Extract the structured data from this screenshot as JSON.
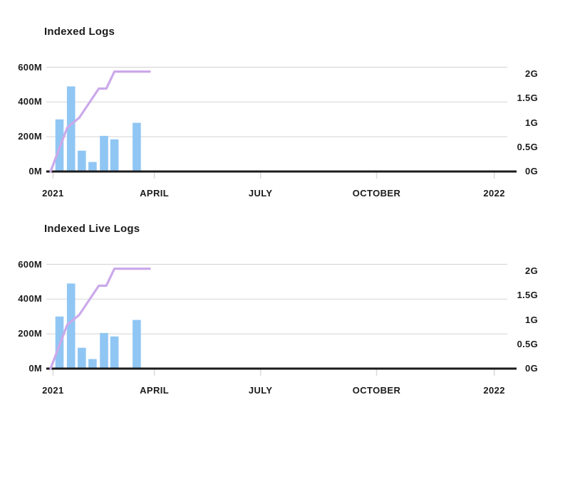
{
  "colors": {
    "background": "#ffffff",
    "grid": "#D9D9D9",
    "axis_line": "#1B1B1D",
    "text": "#1B1B1D",
    "bar": "#90C6F3",
    "line": "#CBA9EA"
  },
  "chart_data": [
    {
      "type": "bar",
      "title": "Indexed Logs",
      "legend": "none",
      "grid": "horizontal",
      "x_axis": {
        "tick_labels": [
          "2021",
          "APRIL",
          "JULY",
          "OCTOBER",
          "2022"
        ],
        "tick_months": [
          0,
          3,
          6,
          9,
          12
        ]
      },
      "left_axis": {
        "tick_labels": [
          "0M",
          "200M",
          "400M",
          "600M"
        ],
        "tick_values_M": [
          0,
          200,
          400,
          600
        ],
        "range_M": [
          0,
          600
        ]
      },
      "right_axis": {
        "tick_labels": [
          "0G",
          "0.5G",
          "1G",
          "1.5G",
          "2G"
        ],
        "tick_values_G": [
          0,
          0.5,
          1,
          1.5,
          2
        ]
      },
      "bars": {
        "unit": "M",
        "x_months": [
          0.24,
          0.55,
          0.84,
          1.13,
          1.44,
          1.72,
          2.32
        ],
        "values_M": [
          300,
          490,
          120,
          55,
          205,
          185,
          280
        ]
      },
      "line": {
        "unit": "G",
        "points_month_G": [
          [
            0,
            0
          ],
          [
            0.45,
            0.9
          ],
          [
            0.77,
            1.1
          ],
          [
            1.3,
            1.7
          ],
          [
            1.5,
            1.7
          ],
          [
            1.72,
            2.05
          ],
          [
            2.67,
            2.05
          ]
        ]
      }
    },
    {
      "type": "bar",
      "title": "Indexed Live Logs",
      "legend": "none",
      "grid": "horizontal",
      "x_axis": {
        "tick_labels": [
          "2021",
          "APRIL",
          "JULY",
          "OCTOBER",
          "2022"
        ],
        "tick_months": [
          0,
          3,
          6,
          9,
          12
        ]
      },
      "left_axis": {
        "tick_labels": [
          "0M",
          "200M",
          "400M",
          "600M"
        ],
        "tick_values_M": [
          0,
          200,
          400,
          600
        ],
        "range_M": [
          0,
          600
        ]
      },
      "right_axis": {
        "tick_labels": [
          "0G",
          "0.5G",
          "1G",
          "1.5G",
          "2G"
        ],
        "tick_values_G": [
          0,
          0.5,
          1,
          1.5,
          2
        ]
      },
      "bars": {
        "unit": "M",
        "x_months": [
          0.24,
          0.55,
          0.84,
          1.13,
          1.44,
          1.72,
          2.32
        ],
        "values_M": [
          300,
          490,
          120,
          55,
          205,
          185,
          280
        ]
      },
      "line": {
        "unit": "G",
        "points_month_G": [
          [
            0,
            0
          ],
          [
            0.45,
            0.9
          ],
          [
            0.77,
            1.1
          ],
          [
            1.3,
            1.7
          ],
          [
            1.5,
            1.7
          ],
          [
            1.72,
            2.05
          ],
          [
            2.67,
            2.05
          ]
        ]
      }
    }
  ]
}
